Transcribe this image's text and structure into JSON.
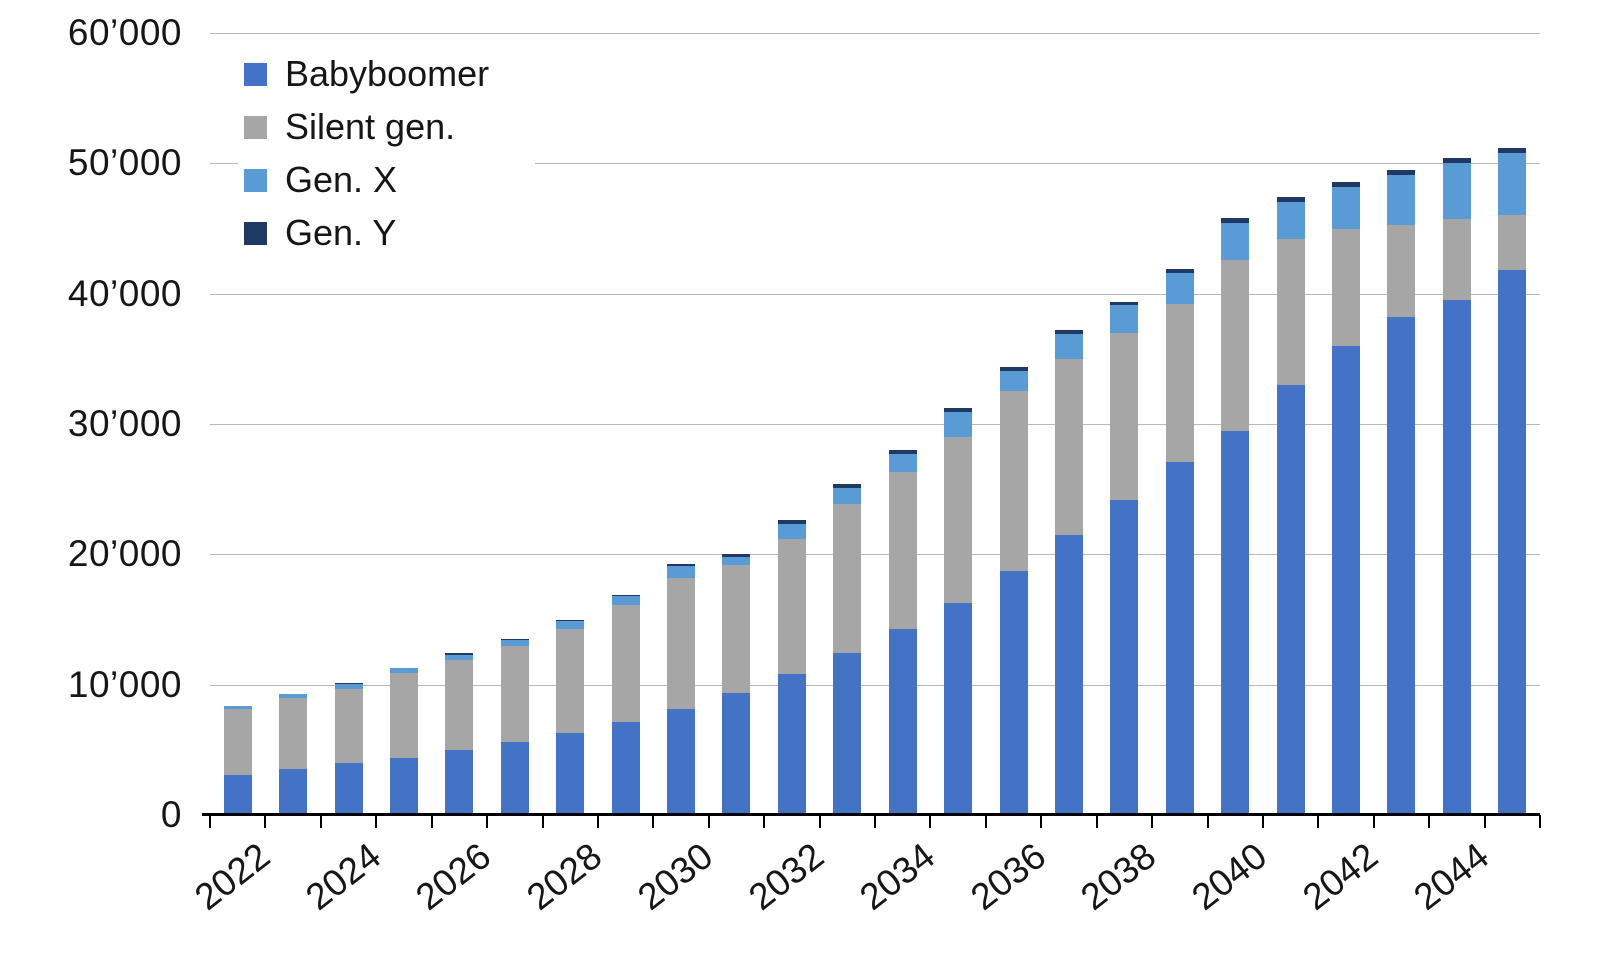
{
  "chart_data": {
    "type": "bar",
    "stacked": true,
    "title": "",
    "xlabel": "",
    "ylabel": "",
    "grid": true,
    "legend_position": "top-left",
    "ylim": [
      0,
      60000
    ],
    "y_ticks": [
      0,
      10000,
      20000,
      30000,
      40000,
      50000,
      60000
    ],
    "y_tick_labels": [
      "0",
      "10’000",
      "20’000",
      "30’000",
      "40’000",
      "50’000",
      "60’000"
    ],
    "categories": [
      "2022",
      "2023",
      "2024",
      "2025",
      "2026",
      "2027",
      "2028",
      "2029",
      "2030",
      "2031",
      "2032",
      "2033",
      "2034",
      "2035",
      "2036",
      "2037",
      "2038",
      "2039",
      "2040",
      "2041",
      "2042",
      "2043",
      "2044",
      "2045"
    ],
    "x_tick_label_every": 2,
    "series": [
      {
        "name": "Babyboomer",
        "color": "#4472c4",
        "values": [
          3100,
          3500,
          4000,
          4400,
          5000,
          5600,
          6300,
          7100,
          8100,
          9400,
          10800,
          12400,
          14300,
          16300,
          18700,
          21500,
          24200,
          27100,
          29500,
          33000,
          36000,
          38200,
          39500,
          41800
        ]
      },
      {
        "name": "Silent gen.",
        "color": "#a6a6a6",
        "values": [
          5000,
          5500,
          5700,
          6500,
          6900,
          7400,
          8000,
          9000,
          10100,
          9800,
          10400,
          11500,
          12000,
          12700,
          13800,
          13500,
          12800,
          12100,
          13100,
          11200,
          9000,
          7100,
          6200,
          4200
        ]
      },
      {
        "name": "Gen. X",
        "color": "#5b9bd5",
        "values": [
          250,
          300,
          350,
          400,
          400,
          400,
          600,
          700,
          900,
          600,
          1100,
          1200,
          1400,
          1900,
          1600,
          1900,
          2100,
          2400,
          2800,
          2800,
          3200,
          3800,
          4300,
          4800
        ]
      },
      {
        "name": "Gen. Y",
        "color": "#1f3864",
        "values": [
          0,
          0,
          100,
          0,
          100,
          100,
          100,
          100,
          150,
          200,
          300,
          300,
          300,
          300,
          300,
          300,
          300,
          300,
          400,
          400,
          400,
          400,
          400,
          400
        ]
      }
    ]
  }
}
